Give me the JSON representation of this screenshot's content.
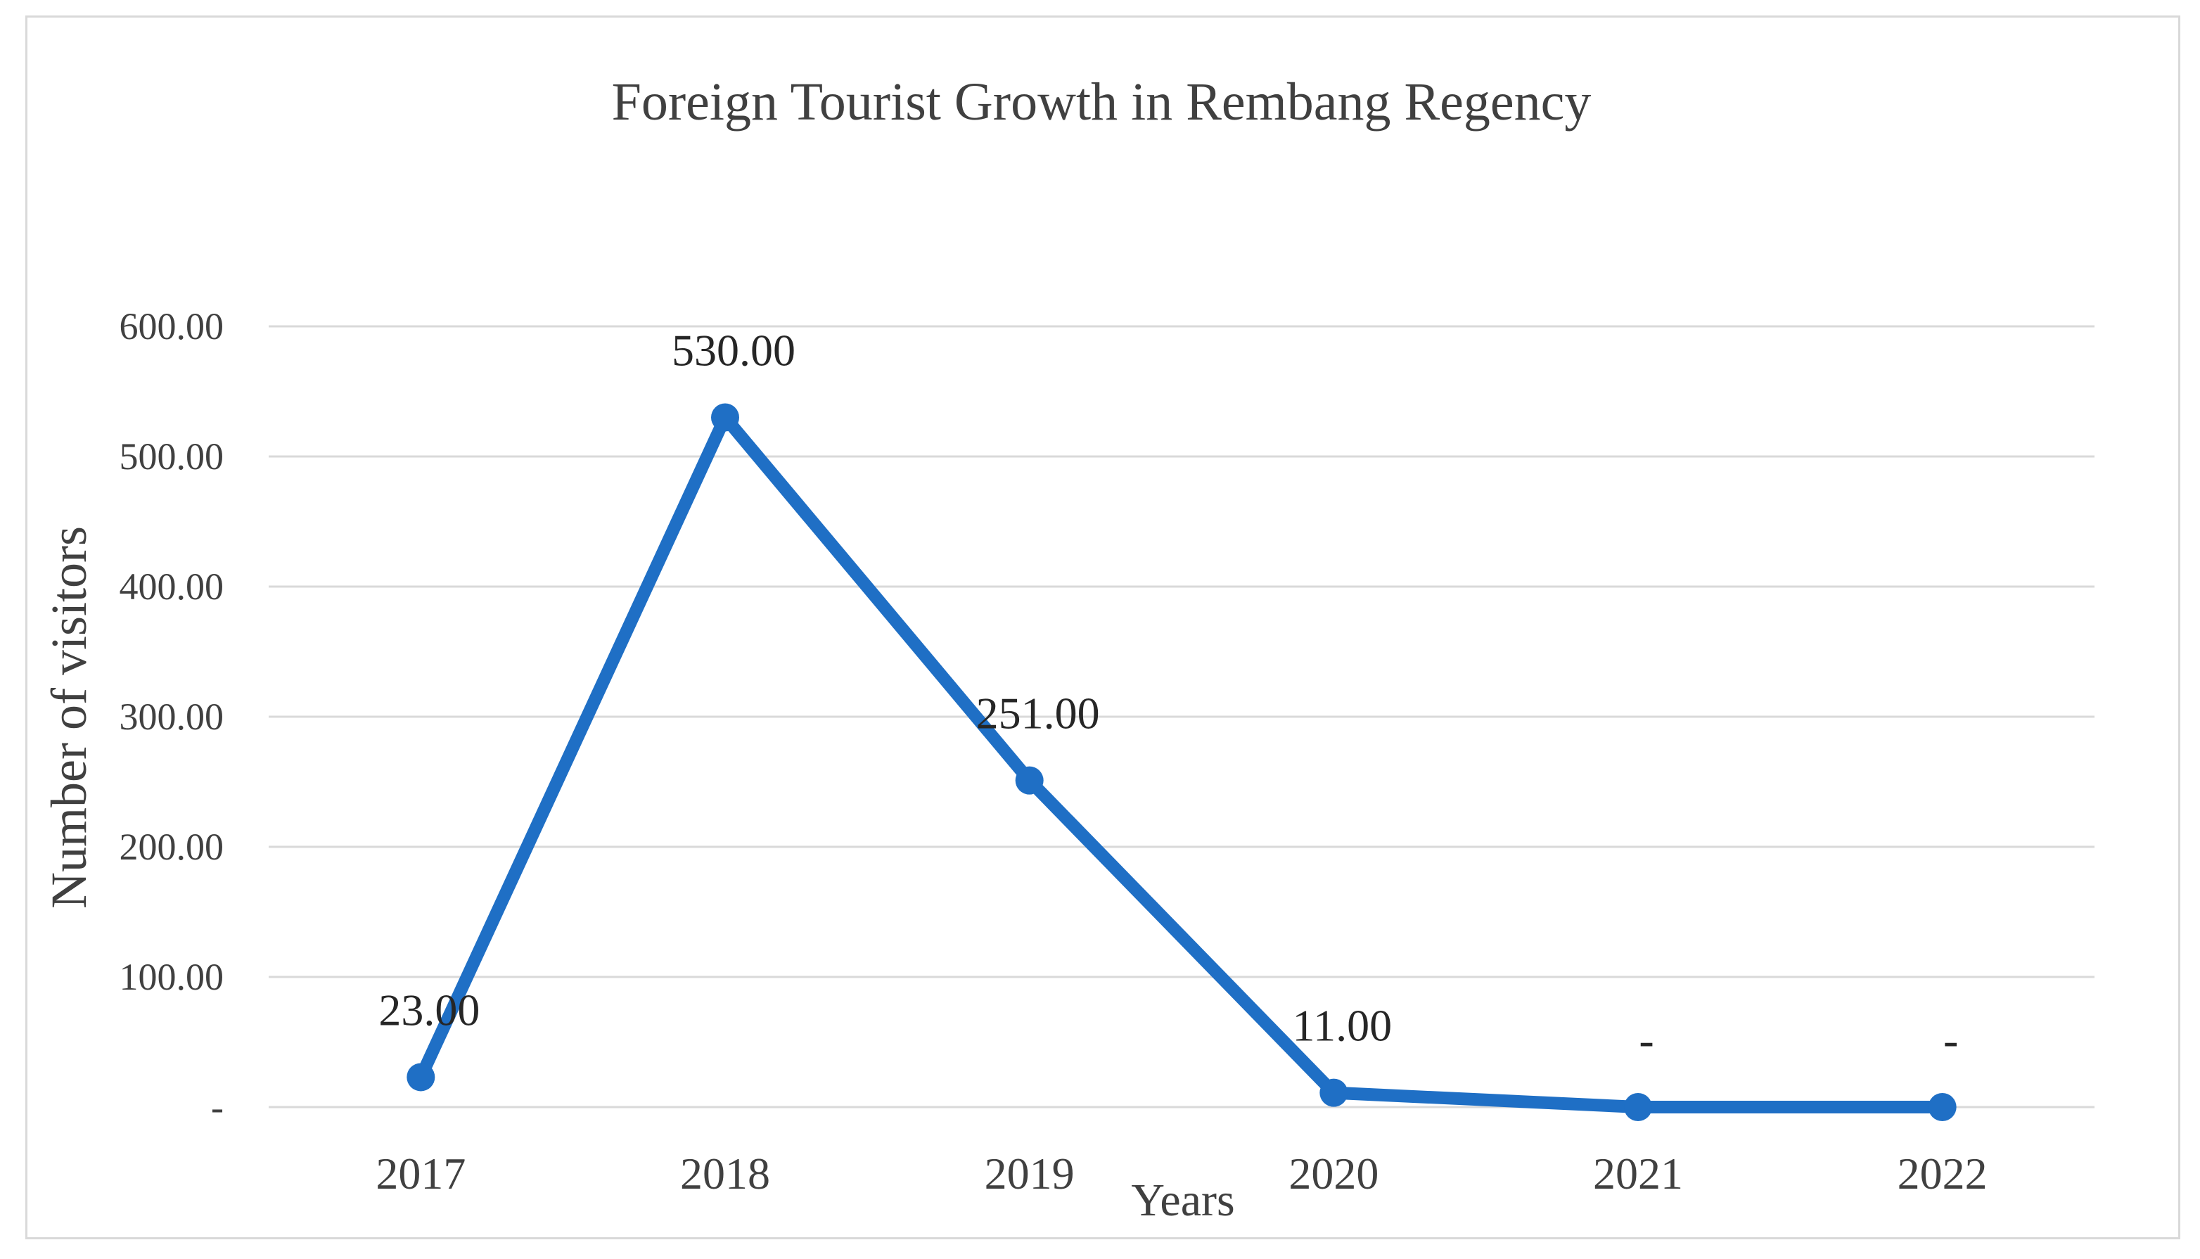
{
  "chart_data": {
    "type": "line",
    "title": "Foreign Tourist Growth in Rembang Regency",
    "xlabel": "Years",
    "ylabel": "Number of visitors",
    "categories": [
      "2017",
      "2018",
      "2019",
      "2020",
      "2021",
      "2022"
    ],
    "series": [
      {
        "values": [
          23,
          530,
          251,
          11,
          0,
          0
        ],
        "labels": [
          "23.00",
          "530.00",
          "251.00",
          "11.00",
          "-",
          "-"
        ]
      }
    ],
    "yticks": [
      {
        "value": 0,
        "label": "-"
      },
      {
        "value": 100,
        "label": "100.00"
      },
      {
        "value": 200,
        "label": "200.00"
      },
      {
        "value": 300,
        "label": "300.00"
      },
      {
        "value": 400,
        "label": "400.00"
      },
      {
        "value": 500,
        "label": "500.00"
      },
      {
        "value": 600,
        "label": "600.00"
      }
    ],
    "ylim": [
      0,
      600
    ],
    "grid": true,
    "legend": "none",
    "colors": {
      "line": "#1f6fc5",
      "grid": "#d9d9d9",
      "text": "#404040"
    }
  }
}
